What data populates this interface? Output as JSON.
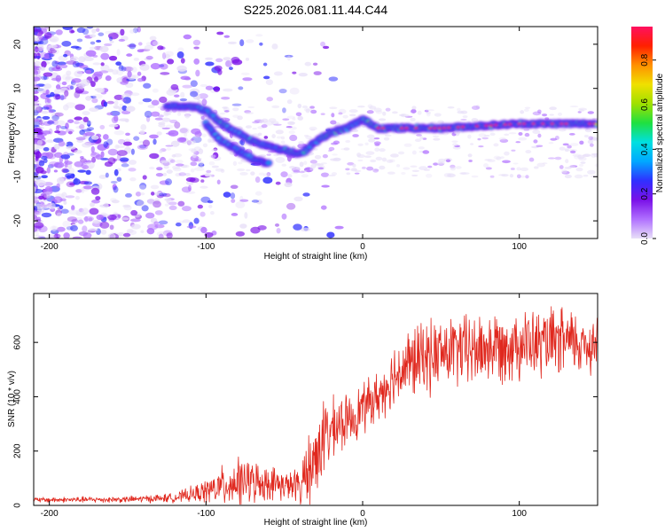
{
  "title": "S225.2026.081.11.44.C44",
  "colors": {
    "snr_line": "#e0281e",
    "colorbar": [
      "#e8e0f8",
      "#b070ff",
      "#7a10e8",
      "#3030ff",
      "#00a8ff",
      "#00e0e0",
      "#20e040",
      "#a0e000",
      "#f0e000",
      "#ff9000",
      "#ff2000",
      "#ff1060"
    ]
  },
  "chart_data": [
    {
      "type": "heatmap",
      "title": "",
      "xlabel": "Height of straight line (km)",
      "ylabel": "Frequency (Hz)",
      "xlim": [
        -210,
        150
      ],
      "ylim": [
        -24,
        24
      ],
      "xticks": [
        -200,
        -100,
        0,
        100
      ],
      "yticks": [
        -20,
        -10,
        0,
        10,
        20
      ],
      "colorbar": {
        "label": "Normalized spectral amplitude",
        "range": [
          0,
          0.95
        ],
        "ticks": [
          "0.0",
          "0.2",
          "0.4",
          "0.6",
          "0.8"
        ]
      },
      "ridge": [
        {
          "x": -125,
          "y": 6
        },
        {
          "x": -110,
          "y": 6
        },
        {
          "x": -100,
          "y": 5
        },
        {
          "x": -90,
          "y": 2
        },
        {
          "x": -80,
          "y": 0
        },
        {
          "x": -70,
          "y": -2
        },
        {
          "x": -60,
          "y": -3
        },
        {
          "x": -50,
          "y": -4
        },
        {
          "x": -40,
          "y": -5
        },
        {
          "x": -30,
          "y": -2
        },
        {
          "x": -20,
          "y": 0
        },
        {
          "x": -10,
          "y": 1
        },
        {
          "x": 0,
          "y": 3
        },
        {
          "x": 10,
          "y": 1
        },
        {
          "x": 50,
          "y": 1
        },
        {
          "x": 100,
          "y": 2
        },
        {
          "x": 150,
          "y": 2
        }
      ],
      "secondary_ridge": [
        {
          "x": -100,
          "y": 2
        },
        {
          "x": -90,
          "y": -2
        },
        {
          "x": -80,
          "y": -4
        },
        {
          "x": -70,
          "y": -6
        },
        {
          "x": -60,
          "y": -7
        }
      ]
    },
    {
      "type": "line",
      "title": "",
      "xlabel": "Height of straight line (km)",
      "ylabel": "SNR (10 * v/v)",
      "xlim": [
        -210,
        150
      ],
      "ylim": [
        0,
        780
      ],
      "xticks": [
        -200,
        -100,
        0,
        100
      ],
      "yticks": [
        0,
        200,
        400,
        600
      ],
      "envelope": {
        "x": [
          -210,
          -150,
          -120,
          -105,
          -95,
          -85,
          -75,
          -65,
          -55,
          -45,
          -38,
          -30,
          -25,
          -20,
          -15,
          -10,
          -5,
          0,
          5,
          10,
          15,
          20,
          25,
          30,
          40,
          50,
          60,
          70,
          80,
          90,
          100,
          110,
          120,
          130,
          140,
          150
        ],
        "mean": [
          20,
          22,
          28,
          45,
          60,
          80,
          90,
          85,
          80,
          70,
          80,
          180,
          250,
          270,
          300,
          310,
          330,
          360,
          380,
          400,
          440,
          480,
          500,
          520,
          545,
          560,
          570,
          570,
          580,
          590,
          600,
          590,
          595,
          600,
          595,
          600
        ],
        "amp": [
          12,
          14,
          20,
          40,
          70,
          100,
          100,
          80,
          70,
          60,
          120,
          180,
          170,
          140,
          130,
          110,
          110,
          110,
          110,
          110,
          120,
          140,
          150,
          160,
          160,
          160,
          160,
          160,
          160,
          160,
          160,
          150,
          150,
          150,
          140,
          140
        ]
      }
    }
  ]
}
